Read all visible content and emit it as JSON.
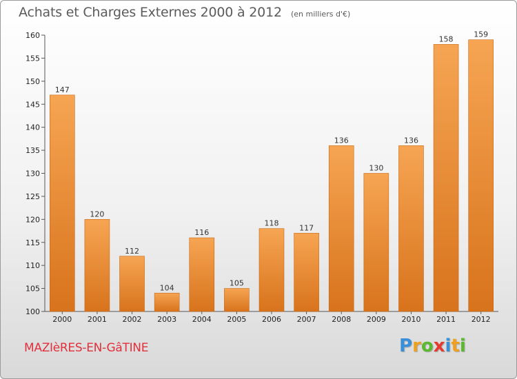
{
  "header": {
    "title": "Achats et Charges Externes 2000 à 2012",
    "unit": "(en milliers d'€)"
  },
  "footer": {
    "commune": "MAZIèRES-EN-GâTINE",
    "logo_text": "Proxiti",
    "logo_letters": [
      "P",
      "r",
      "o",
      "x",
      "i",
      "t",
      "i"
    ],
    "logo_colors": [
      "#3a8fd9",
      "#f0a020",
      "#5cb82e",
      "#e63a2e",
      "#3a8fd9",
      "#f0a020",
      "#5cb82e"
    ]
  },
  "colors": {
    "bar_top": "#f6a553",
    "bar_bottom": "#d8731c",
    "bar_edge": "#c86812",
    "title": "#5b5b5b",
    "commune": "#e0303b"
  },
  "chart_data": {
    "type": "bar",
    "title": "Achats et Charges Externes 2000 à 2012",
    "subtitle": "(en milliers d'€)",
    "xlabel": "",
    "ylabel": "",
    "categories": [
      "2000",
      "2001",
      "2002",
      "2003",
      "2004",
      "2005",
      "2006",
      "2007",
      "2008",
      "2009",
      "2010",
      "2011",
      "2012"
    ],
    "values": [
      147,
      120,
      112,
      104,
      116,
      105,
      118,
      117,
      136,
      130,
      136,
      158,
      159
    ],
    "ylim": [
      100,
      160
    ],
    "yticks": [
      100,
      105,
      110,
      115,
      120,
      125,
      130,
      135,
      140,
      145,
      150,
      155,
      160
    ],
    "grid": false,
    "data_labels": true
  }
}
